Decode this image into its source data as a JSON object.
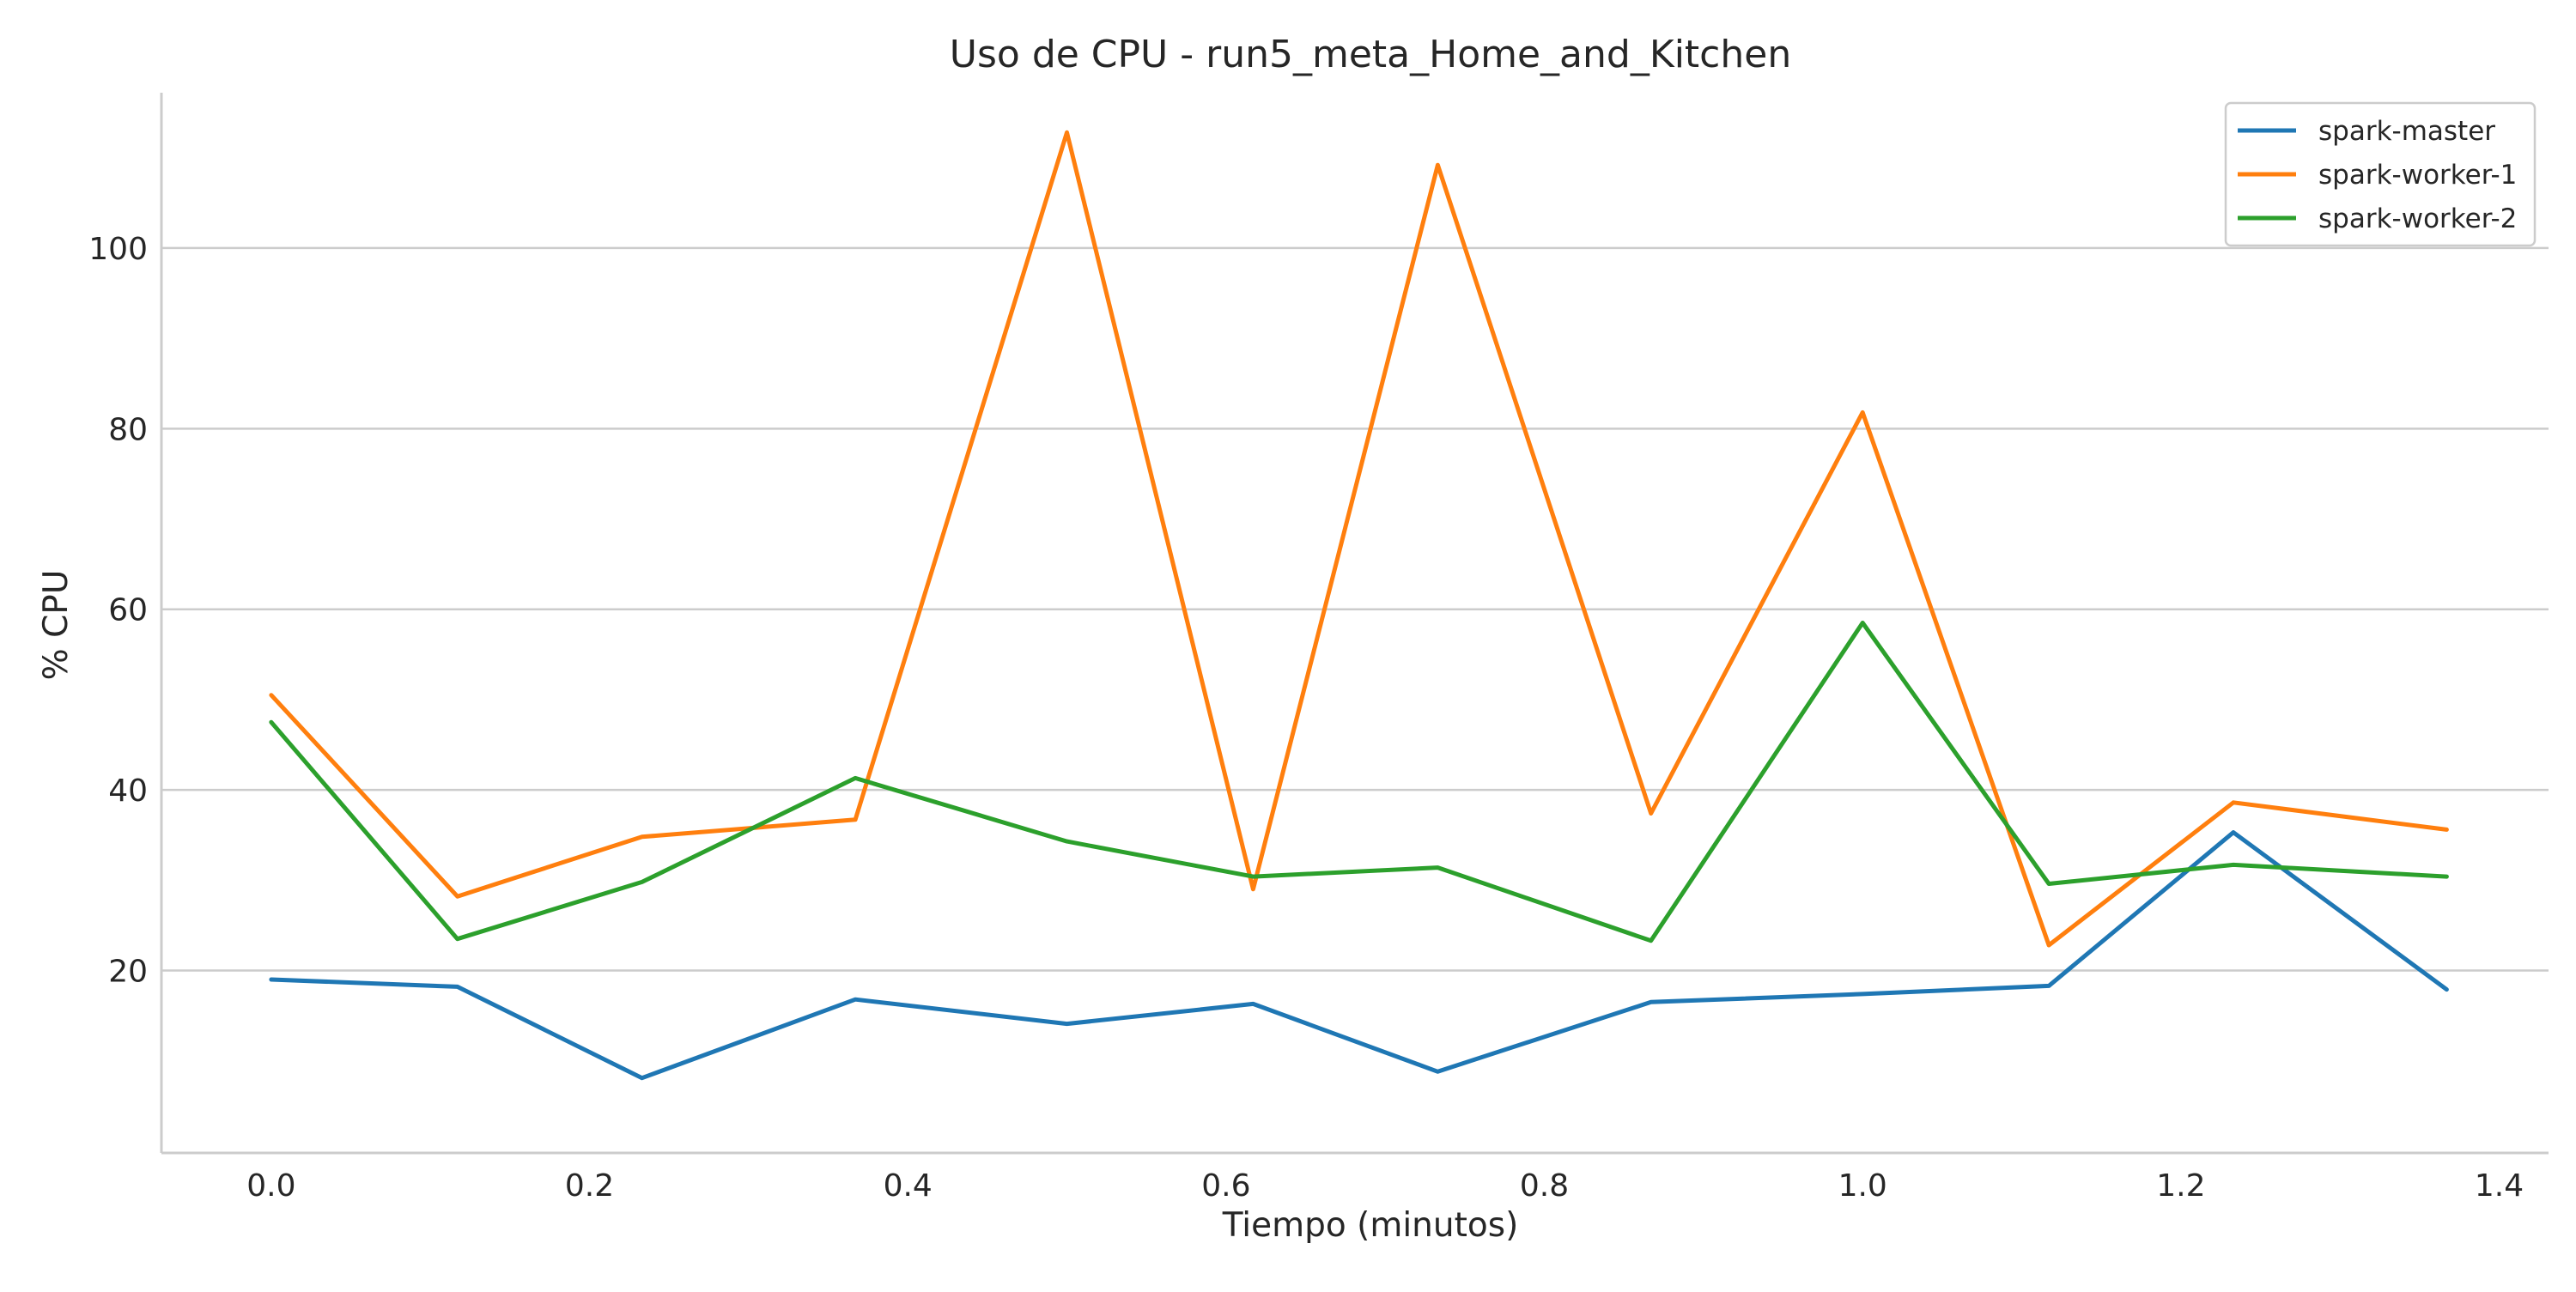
{
  "chart_data": {
    "type": "line",
    "title": "Uso de CPU - run5_meta_Home_and_Kitchen",
    "xlabel": "Tiempo (minutos)",
    "ylabel": "% CPU",
    "xlim": [
      -0.069,
      1.431
    ],
    "ylim": [
      -0.2,
      117.2
    ],
    "xticks": [
      0.0,
      0.2,
      0.4,
      0.6,
      0.8,
      1.0,
      1.2,
      1.4
    ],
    "xtick_labels": [
      "0.0",
      "0.2",
      "0.4",
      "0.6",
      "0.8",
      "1.0",
      "1.2",
      "1.4"
    ],
    "yticks": [
      20,
      40,
      60,
      80,
      100
    ],
    "ytick_labels": [
      "20",
      "40",
      "60",
      "80",
      "100"
    ],
    "grid": "horizontal",
    "legend_position": "top-right",
    "x": [
      0.0,
      0.117,
      0.233,
      0.367,
      0.5,
      0.617,
      0.733,
      0.867,
      1.0,
      1.117,
      1.233,
      1.367
    ],
    "series": [
      {
        "name": "spark-master",
        "color": "#1f77b4",
        "values": [
          19.0,
          18.2,
          8.1,
          16.8,
          14.1,
          16.3,
          8.8,
          16.5,
          17.4,
          18.3,
          35.3,
          17.9
        ]
      },
      {
        "name": "spark-worker-1",
        "color": "#ff7f0e",
        "values": [
          50.5,
          28.2,
          34.8,
          36.7,
          112.8,
          29.0,
          109.2,
          37.4,
          81.8,
          22.8,
          38.6,
          35.6
        ]
      },
      {
        "name": "spark-worker-2",
        "color": "#2ca02c",
        "values": [
          47.5,
          23.5,
          29.8,
          41.3,
          34.3,
          30.4,
          31.4,
          23.3,
          58.5,
          29.6,
          31.7,
          30.4
        ]
      }
    ]
  }
}
